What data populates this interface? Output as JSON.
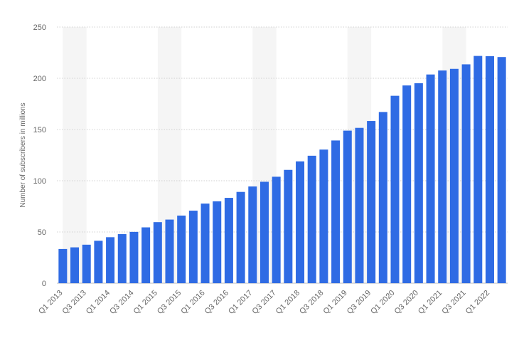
{
  "chart_data": {
    "type": "bar",
    "title": "",
    "xlabel": "",
    "ylabel": "Number of subscribers in millions",
    "ylim": [
      0,
      250
    ],
    "yticks": [
      0,
      50,
      100,
      150,
      200,
      250
    ],
    "grid": true,
    "legend": "none",
    "categories": [
      "Q1 2013",
      "Q2 2013",
      "Q3 2013",
      "Q4 2013",
      "Q1 2014",
      "Q2 2014",
      "Q3 2014",
      "Q4 2014",
      "Q1 2015",
      "Q2 2015",
      "Q3 2015",
      "Q4 2015",
      "Q1 2016",
      "Q2 2016",
      "Q3 2016",
      "Q4 2016",
      "Q1 2017",
      "Q2 2017",
      "Q3 2017",
      "Q4 2017",
      "Q1 2018",
      "Q2 2018",
      "Q3 2018",
      "Q4 2018",
      "Q1 2019",
      "Q2 2019",
      "Q3 2019",
      "Q4 2019",
      "Q1 2020",
      "Q2 2020",
      "Q3 2020",
      "Q4 2020",
      "Q1 2021",
      "Q2 2021",
      "Q3 2021",
      "Q4 2021",
      "Q1 2022",
      "Q2 2022"
    ],
    "shown_tick_labels": [
      "Q1 2013",
      "Q3 2013",
      "Q1 2014",
      "Q3 2014",
      "Q1 2015",
      "Q3 2015",
      "Q1 2016",
      "Q3 2016",
      "Q1 2017",
      "Q3 2017",
      "Q1 2018",
      "Q3 2018",
      "Q1 2019",
      "Q3 2019",
      "Q1 2020",
      "Q3 2020",
      "Q1 2021",
      "Q3 2021",
      "Q1 2022"
    ],
    "values": [
      33.4,
      35.0,
      37.6,
      41.4,
      44.9,
      47.9,
      50.1,
      54.5,
      59.6,
      62.1,
      66.0,
      70.8,
      77.7,
      79.9,
      83.3,
      89.1,
      94.4,
      99.0,
      103.9,
      110.6,
      118.9,
      124.4,
      130.4,
      139.3,
      148.9,
      151.6,
      158.3,
      167.1,
      182.9,
      193.0,
      195.2,
      203.7,
      207.6,
      209.2,
      213.6,
      221.8,
      221.6,
      220.7
    ],
    "colors": {
      "bar": "#2f6be4",
      "band": "#f5f5f5",
      "grid": "#d0d0d0",
      "text": "#666666"
    }
  }
}
